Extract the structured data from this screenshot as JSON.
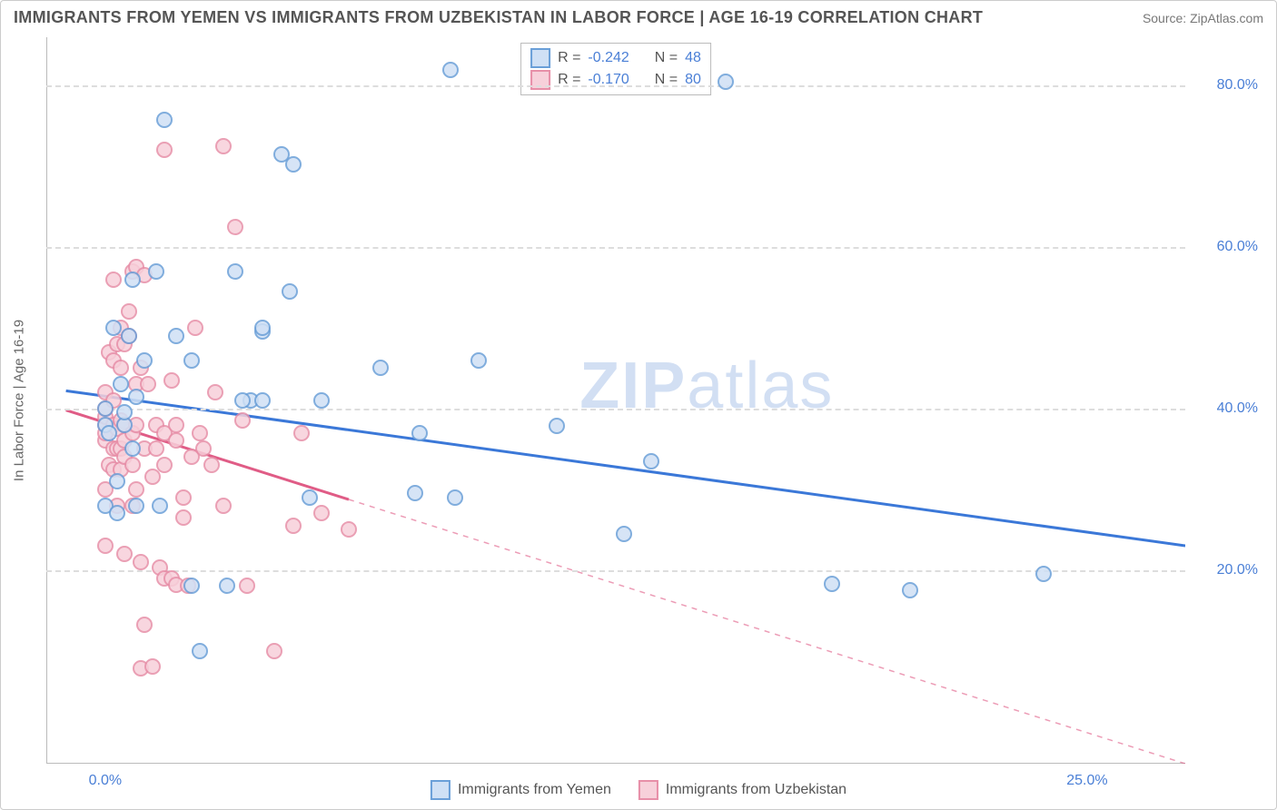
{
  "title": "IMMIGRANTS FROM YEMEN VS IMMIGRANTS FROM UZBEKISTAN IN LABOR FORCE | AGE 16-19 CORRELATION CHART",
  "source": "Source: ZipAtlas.com",
  "watermark_zip": "ZIP",
  "watermark_atlas": "atlas",
  "chart": {
    "type": "scatter",
    "background_color": "#ffffff",
    "grid_color": "#dddddd",
    "axis_color": "#bbbbbb",
    "text_color": "#555555",
    "tick_label_color": "#4a7fd6",
    "y_axis_title": "In Labor Force | Age 16-19",
    "x_range": [
      -1.5,
      27.5
    ],
    "y_range": [
      -4,
      86
    ],
    "y_ticks": [
      20.0,
      40.0,
      60.0,
      80.0
    ],
    "y_tick_labels": [
      "20.0%",
      "40.0%",
      "60.0%",
      "80.0%"
    ],
    "x_ticks": [
      0.0,
      25.0
    ],
    "x_tick_labels": [
      "0.0%",
      "25.0%"
    ],
    "series": [
      {
        "name": "Immigrants from Yemen",
        "key": "yemen",
        "fill": "#cfe0f5",
        "stroke": "#6a9fd8",
        "line_color": "#3b78d8",
        "line_width": 3,
        "r_label": "R = ",
        "r_value": "-0.242",
        "n_label": "N = ",
        "n_value": "48",
        "trend": {
          "x1": -1.0,
          "y1": 42.2,
          "x2": 27.5,
          "y2": 23.0,
          "solid_until_x": 27.5
        },
        "points": [
          [
            0.0,
            28.0
          ],
          [
            0.0,
            38.0
          ],
          [
            0.0,
            40.0
          ],
          [
            0.1,
            37.0
          ],
          [
            0.2,
            50.0
          ],
          [
            0.3,
            27.0
          ],
          [
            0.3,
            31.0
          ],
          [
            0.4,
            43.0
          ],
          [
            0.5,
            38.0
          ],
          [
            0.5,
            39.5
          ],
          [
            0.6,
            49.0
          ],
          [
            0.7,
            35.0
          ],
          [
            0.7,
            56.0
          ],
          [
            0.8,
            28.0
          ],
          [
            0.8,
            41.5
          ],
          [
            1.0,
            46.0
          ],
          [
            1.3,
            57.0
          ],
          [
            1.4,
            28.0
          ],
          [
            1.5,
            75.8
          ],
          [
            1.8,
            49.0
          ],
          [
            2.2,
            46.0
          ],
          [
            2.2,
            18.0
          ],
          [
            2.4,
            10.0
          ],
          [
            3.1,
            18.0
          ],
          [
            3.3,
            57.0
          ],
          [
            3.7,
            41.0
          ],
          [
            4.0,
            49.5
          ],
          [
            4.0,
            50.0
          ],
          [
            4.5,
            71.5
          ],
          [
            4.8,
            70.3
          ],
          [
            4.0,
            41.0
          ],
          [
            4.7,
            54.5
          ],
          [
            5.5,
            41.0
          ],
          [
            5.2,
            29.0
          ],
          [
            7.0,
            45.0
          ],
          [
            7.9,
            29.5
          ],
          [
            8.0,
            37.0
          ],
          [
            8.8,
            82.0
          ],
          [
            8.9,
            29.0
          ],
          [
            11.5,
            37.8
          ],
          [
            13.2,
            24.5
          ],
          [
            13.9,
            33.5
          ],
          [
            15.8,
            80.5
          ],
          [
            18.5,
            18.3
          ],
          [
            20.5,
            17.5
          ],
          [
            23.9,
            19.5
          ],
          [
            9.5,
            46.0
          ],
          [
            3.5,
            41.0
          ]
        ]
      },
      {
        "name": "Immigrants from Uzbekistan",
        "key": "uzbek",
        "fill": "#f7d0da",
        "stroke": "#e78fa8",
        "line_color": "#e05c86",
        "line_width": 3,
        "r_label": "R = ",
        "r_value": "-0.170",
        "n_label": "N = ",
        "n_value": "80",
        "trend": {
          "x1": -1.0,
          "y1": 39.8,
          "x2": 27.5,
          "y2": -4.0,
          "solid_until_x": 6.2
        },
        "points": [
          [
            0.0,
            23.0
          ],
          [
            0.0,
            30.0
          ],
          [
            0.0,
            36.0
          ],
          [
            0.0,
            37.0
          ],
          [
            0.0,
            38.0
          ],
          [
            0.0,
            39.0
          ],
          [
            0.0,
            40.0
          ],
          [
            0.0,
            42.0
          ],
          [
            0.1,
            33.0
          ],
          [
            0.1,
            47.0
          ],
          [
            0.2,
            32.5
          ],
          [
            0.2,
            35.0
          ],
          [
            0.2,
            38.0
          ],
          [
            0.2,
            41.0
          ],
          [
            0.2,
            46.0
          ],
          [
            0.2,
            56.0
          ],
          [
            0.3,
            28.0
          ],
          [
            0.3,
            35.0
          ],
          [
            0.3,
            37.5
          ],
          [
            0.3,
            48.0
          ],
          [
            0.4,
            32.5
          ],
          [
            0.4,
            35.0
          ],
          [
            0.4,
            38.5
          ],
          [
            0.4,
            45.0
          ],
          [
            0.4,
            50.0
          ],
          [
            0.5,
            22.0
          ],
          [
            0.5,
            34.0
          ],
          [
            0.5,
            36.0
          ],
          [
            0.5,
            38.0
          ],
          [
            0.5,
            48.0
          ],
          [
            0.6,
            49.0
          ],
          [
            0.6,
            52.0
          ],
          [
            0.7,
            28.0
          ],
          [
            0.7,
            33.0
          ],
          [
            0.7,
            37.0
          ],
          [
            0.7,
            57.0
          ],
          [
            0.8,
            30.0
          ],
          [
            0.8,
            38.0
          ],
          [
            0.8,
            43.0
          ],
          [
            0.8,
            57.5
          ],
          [
            0.9,
            7.8
          ],
          [
            0.9,
            21.0
          ],
          [
            0.9,
            45.0
          ],
          [
            1.0,
            13.2
          ],
          [
            1.0,
            35.0
          ],
          [
            1.0,
            56.5
          ],
          [
            1.1,
            43.0
          ],
          [
            1.2,
            8.0
          ],
          [
            1.2,
            31.5
          ],
          [
            1.3,
            35.0
          ],
          [
            1.3,
            38.0
          ],
          [
            1.4,
            20.3
          ],
          [
            1.5,
            19.0
          ],
          [
            1.5,
            33.0
          ],
          [
            1.5,
            37.0
          ],
          [
            1.5,
            72.0
          ],
          [
            1.7,
            19.0
          ],
          [
            1.7,
            43.5
          ],
          [
            1.8,
            18.2
          ],
          [
            1.8,
            36.0
          ],
          [
            1.8,
            38.0
          ],
          [
            2.0,
            26.5
          ],
          [
            2.0,
            29.0
          ],
          [
            2.1,
            18.0
          ],
          [
            2.2,
            34.0
          ],
          [
            2.3,
            50.0
          ],
          [
            2.4,
            37.0
          ],
          [
            2.5,
            35.0
          ],
          [
            2.7,
            33.0
          ],
          [
            2.8,
            42.0
          ],
          [
            3.0,
            28.0
          ],
          [
            3.0,
            72.5
          ],
          [
            3.3,
            62.5
          ],
          [
            3.5,
            38.5
          ],
          [
            3.6,
            18.0
          ],
          [
            4.3,
            10.0
          ],
          [
            4.8,
            25.5
          ],
          [
            5.0,
            37.0
          ],
          [
            5.5,
            27.0
          ],
          [
            6.2,
            25.0
          ]
        ]
      }
    ],
    "footer_series_label_1": "Immigrants from Yemen",
    "footer_series_label_2": "Immigrants from Uzbekistan"
  }
}
